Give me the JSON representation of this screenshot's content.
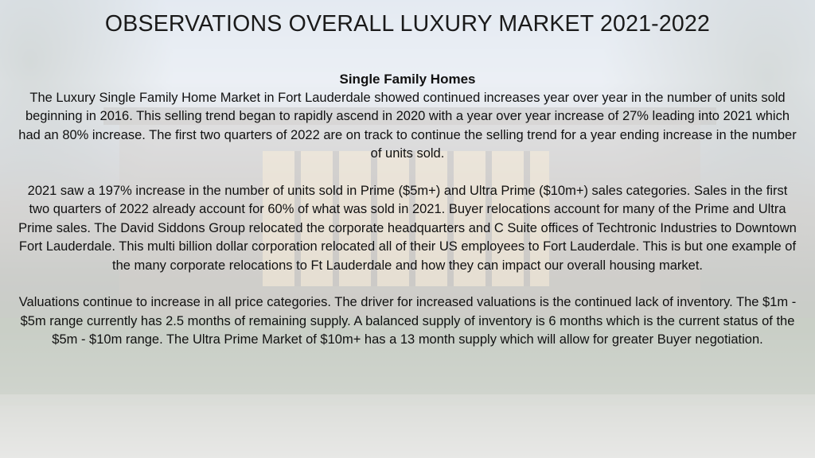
{
  "slide": {
    "title": "OBSERVATIONS OVERALL LUXURY MARKET 2021-2022",
    "subheading": "Single Family Homes",
    "paragraphs": [
      "The Luxury Single Family Home Market in Fort Lauderdale showed continued increases year over year in the number of units sold beginning in 2016. This selling trend began to rapidly ascend in 2020 with a year over year increase of 27% leading into 2021 which had an 80% increase. The first two quarters of 2022 are on track to continue the selling trend for a year ending increase in the number of units sold.",
      "2021 saw a 197% increase in the number of units sold in Prime ($5m+) and Ultra Prime ($10m+) sales categories. Sales in the first two quarters of 2022 already account for 60% of what was sold in 2021. Buyer relocations account for many of the Prime and Ultra Prime sales. The David Siddons Group relocated the corporate headquarters and C Suite offices of Techtronic Industries to Downtown Fort Lauderdale. This multi billion dollar corporation relocated all of their US employees to Fort Lauderdale. This is but one example of the many corporate relocations to Ft Lauderdale and how they can impact our overall housing market.",
      "Valuations continue to increase in all price categories. The driver for increased valuations is the continued lack of inventory. The $1m - $5m range currently has 2.5 months of remaining supply. A balanced supply of inventory is 6 months which is the current status of the $5m - $10m range. The Ultra Prime Market of $10m+ has a 13 month supply which will allow for greater Buyer negotiation."
    ]
  }
}
